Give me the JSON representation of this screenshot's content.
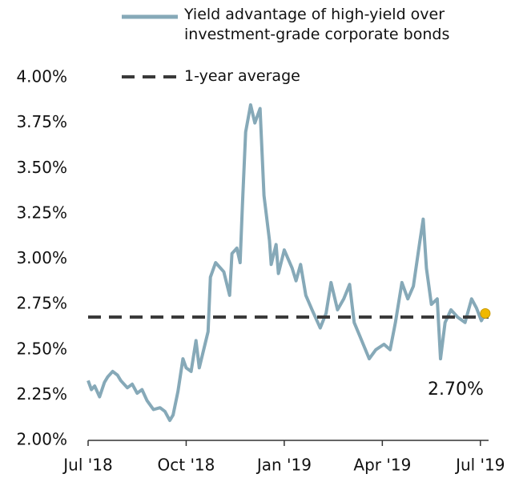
{
  "chart_data": {
    "type": "line",
    "series": [
      {
        "name": "Yield advantage of high-yield over investment-grade corporate bonds",
        "color": "#86a9b8",
        "x": [
          0,
          0.1,
          0.2,
          0.35,
          0.5,
          0.6,
          0.75,
          0.9,
          1.0,
          1.2,
          1.35,
          1.5,
          1.65,
          1.8,
          2.0,
          2.2,
          2.35,
          2.5,
          2.6,
          2.75,
          2.9,
          3.0,
          3.15,
          3.3,
          3.4,
          3.67,
          3.74,
          3.9,
          4.15,
          4.33,
          4.4,
          4.55,
          4.65,
          4.72,
          4.82,
          4.97,
          5.1,
          5.26,
          5.38,
          5.55,
          5.6,
          5.75,
          5.82,
          6.0,
          6.24,
          6.36,
          6.5,
          6.66,
          6.85,
          7.1,
          7.28,
          7.43,
          7.63,
          7.82,
          8.0,
          8.14,
          8.3,
          8.6,
          8.8,
          9.05,
          9.24,
          9.4,
          9.6,
          9.78,
          9.95,
          10.15,
          10.25,
          10.35,
          10.5,
          10.68,
          10.78,
          10.92,
          11.1,
          11.3,
          11.53,
          11.73,
          11.88,
          12.03,
          12.15
        ],
        "values": [
          2.33,
          2.28,
          2.3,
          2.24,
          2.32,
          2.35,
          2.38,
          2.36,
          2.33,
          2.29,
          2.31,
          2.26,
          2.28,
          2.22,
          2.17,
          2.18,
          2.16,
          2.11,
          2.14,
          2.27,
          2.45,
          2.4,
          2.38,
          2.55,
          2.4,
          2.6,
          2.9,
          2.98,
          2.93,
          2.8,
          3.03,
          3.06,
          2.98,
          3.3,
          3.7,
          3.85,
          3.75,
          3.83,
          3.35,
          3.1,
          2.97,
          3.08,
          2.92,
          3.05,
          2.95,
          2.88,
          2.97,
          2.8,
          2.72,
          2.62,
          2.7,
          2.87,
          2.72,
          2.78,
          2.86,
          2.65,
          2.58,
          2.45,
          2.5,
          2.53,
          2.5,
          2.65,
          2.87,
          2.78,
          2.85,
          3.1,
          3.22,
          2.95,
          2.75,
          2.78,
          2.45,
          2.65,
          2.72,
          2.68,
          2.65,
          2.78,
          2.73,
          2.66,
          2.7
        ]
      }
    ],
    "reference": {
      "name": "1-year average",
      "value": 2.68,
      "color": "#3a3a3a"
    },
    "endpoint_color": "#f0b800",
    "annotation": "2.70%",
    "xlim": [
      0,
      12.25
    ],
    "xticks": [
      {
        "value": 0,
        "label": "Jul '18"
      },
      {
        "value": 3,
        "label": "Oct '18"
      },
      {
        "value": 6,
        "label": "Jan '19"
      },
      {
        "value": 9,
        "label": "Apr '19"
      },
      {
        "value": 12,
        "label": "Jul '19"
      }
    ],
    "ylim": [
      2,
      4
    ],
    "yticks": [
      {
        "value": 2,
        "label": "2.00%"
      },
      {
        "value": 2.25,
        "label": "2.25%"
      },
      {
        "value": 2.5,
        "label": "2.50%"
      },
      {
        "value": 2.75,
        "label": "2.75%"
      },
      {
        "value": 3,
        "label": "3.00%"
      },
      {
        "value": 3.25,
        "label": "3.25%"
      },
      {
        "value": 3.5,
        "label": "3.50%"
      },
      {
        "value": 3.75,
        "label": "3.75%"
      },
      {
        "value": 4,
        "label": "4.00%"
      }
    ],
    "grid": false
  }
}
